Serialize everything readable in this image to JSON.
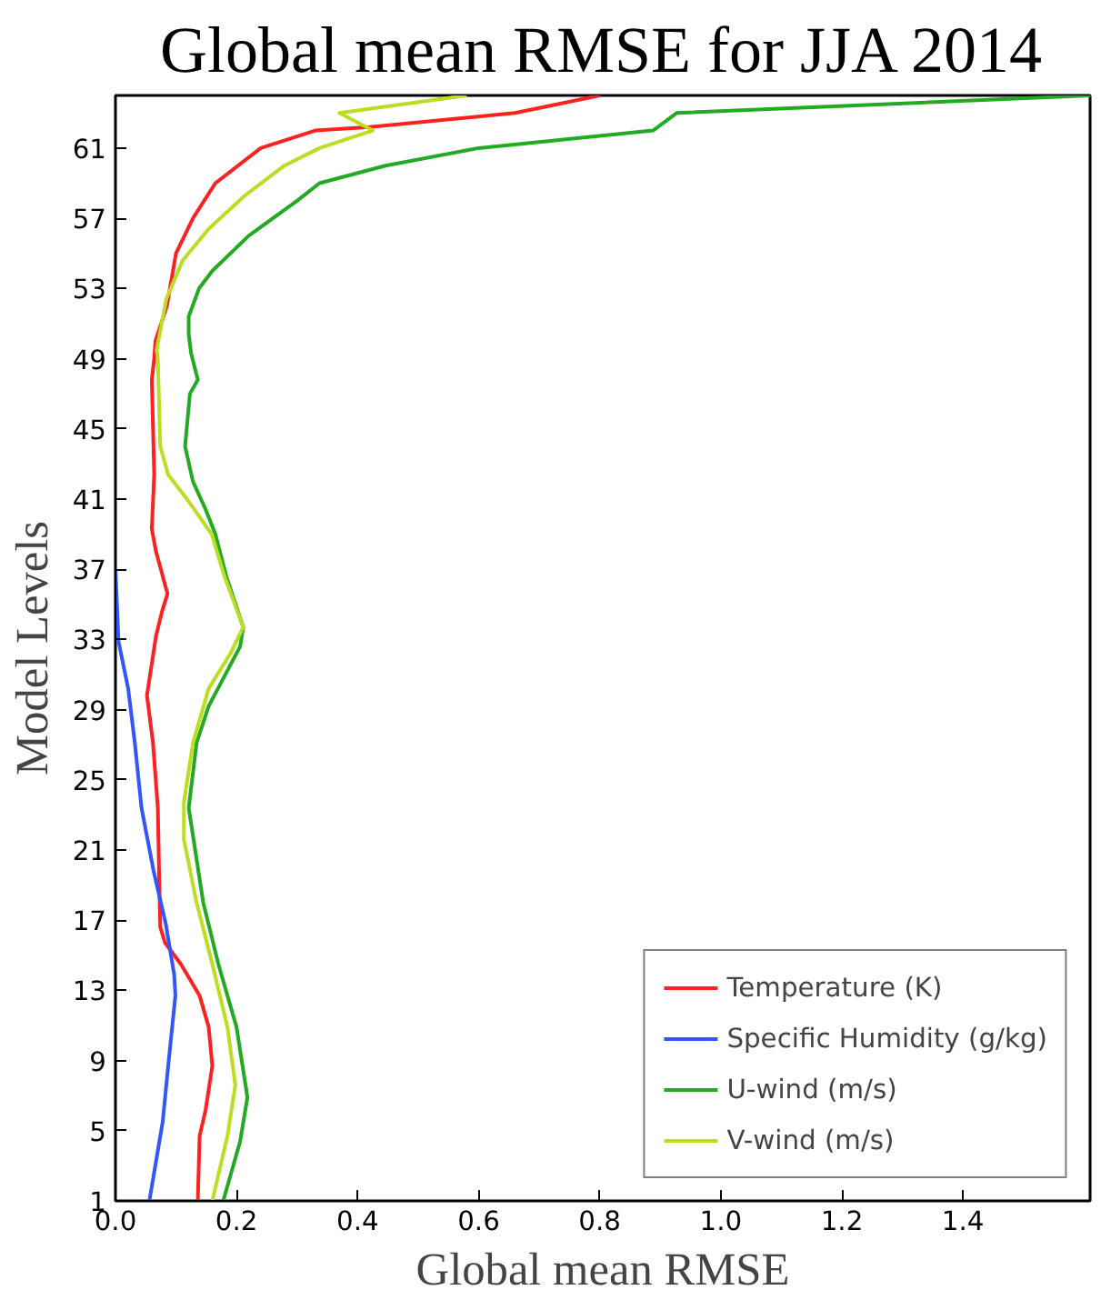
{
  "chart_data": {
    "type": "line",
    "orientation": "horizontal",
    "title": "Global mean RMSE for JJA 2014",
    "xlabel": "Global mean RMSE",
    "ylabel": "Model Levels",
    "xlim": [
      0,
      1.61
    ],
    "xticks": [
      {
        "value": 0,
        "label": "0.0"
      },
      0.2,
      0.4,
      0.6,
      0.8,
      {
        "value": 1,
        "label": "1.0"
      },
      1.2,
      1.4
    ],
    "ylim": [
      1,
      64
    ],
    "yticks": [
      1,
      5,
      9,
      13,
      17,
      21,
      25,
      29,
      33,
      37,
      41,
      45,
      49,
      53,
      57,
      61
    ],
    "grid": false,
    "legend": "bottom right",
    "marker": "none",
    "line_style": "solid",
    "series": [
      {
        "name": "Temperature (K)",
        "color": "#ff2020",
        "x": [
          1,
          4.7,
          6.2,
          8.7,
          10.9,
          12.7,
          14.5,
          15.7,
          16.6,
          19.8,
          23.4,
          27.1,
          29.8,
          33.2,
          34.6,
          35.6,
          38,
          39.3,
          42.4,
          47.8,
          49,
          50,
          52,
          55,
          57,
          59,
          61,
          62,
          62.2,
          63,
          64
        ],
        "values": [
          0.136,
          0.139,
          0.149,
          0.16,
          0.154,
          0.139,
          0.108,
          0.082,
          0.074,
          0.072,
          0.07,
          0.062,
          0.052,
          0.067,
          0.077,
          0.086,
          0.067,
          0.06,
          0.064,
          0.06,
          0.064,
          0.066,
          0.085,
          0.1,
          0.128,
          0.165,
          0.24,
          0.33,
          0.42,
          0.66,
          0.8
        ]
      },
      {
        "name": "Specific Humidity (g/kg)",
        "color": "#3355ff",
        "x": [
          1,
          5.5,
          9,
          12.7,
          13.9,
          16.8,
          19.8,
          23.4,
          27.1,
          30.2,
          32.9,
          37
        ],
        "values": [
          0.056,
          0.078,
          0.088,
          0.099,
          0.097,
          0.083,
          0.063,
          0.043,
          0.032,
          0.021,
          0.005,
          0.0
        ]
      },
      {
        "name": "U-wind (m/s)",
        "color": "#22aa22",
        "x": [
          1,
          4.4,
          6.9,
          10.9,
          14.5,
          18,
          23.4,
          27.1,
          29.2,
          30.9,
          32.6,
          33.7,
          36.6,
          39,
          40.4,
          42,
          44,
          47,
          47.8,
          49.3,
          50.4,
          51.4,
          53,
          54,
          56,
          57,
          58,
          59,
          60,
          61,
          62,
          63,
          64
        ],
        "values": [
          0.178,
          0.206,
          0.218,
          0.2,
          0.17,
          0.145,
          0.121,
          0.134,
          0.154,
          0.18,
          0.206,
          0.211,
          0.183,
          0.165,
          0.149,
          0.128,
          0.115,
          0.123,
          0.136,
          0.125,
          0.121,
          0.121,
          0.138,
          0.16,
          0.22,
          0.26,
          0.3,
          0.337,
          0.446,
          0.6,
          0.888,
          0.927,
          1.61
        ]
      },
      {
        "name": "V-wind (m/s)",
        "color": "#bbdd22",
        "x": [
          1,
          4.7,
          7.6,
          10.9,
          14.5,
          18,
          21.6,
          23.7,
          27.1,
          30.2,
          32.2,
          33.7,
          36.6,
          39,
          41,
          42.4,
          44,
          49,
          49.5,
          52.4,
          54.6,
          56.4,
          58.3,
          60,
          61,
          62,
          63,
          64
        ],
        "values": [
          0.16,
          0.185,
          0.198,
          0.185,
          0.16,
          0.134,
          0.113,
          0.113,
          0.128,
          0.154,
          0.19,
          0.211,
          0.18,
          0.159,
          0.118,
          0.087,
          0.074,
          0.07,
          0.068,
          0.084,
          0.111,
          0.154,
          0.214,
          0.279,
          0.337,
          0.425,
          0.37,
          0.58
        ]
      }
    ]
  }
}
